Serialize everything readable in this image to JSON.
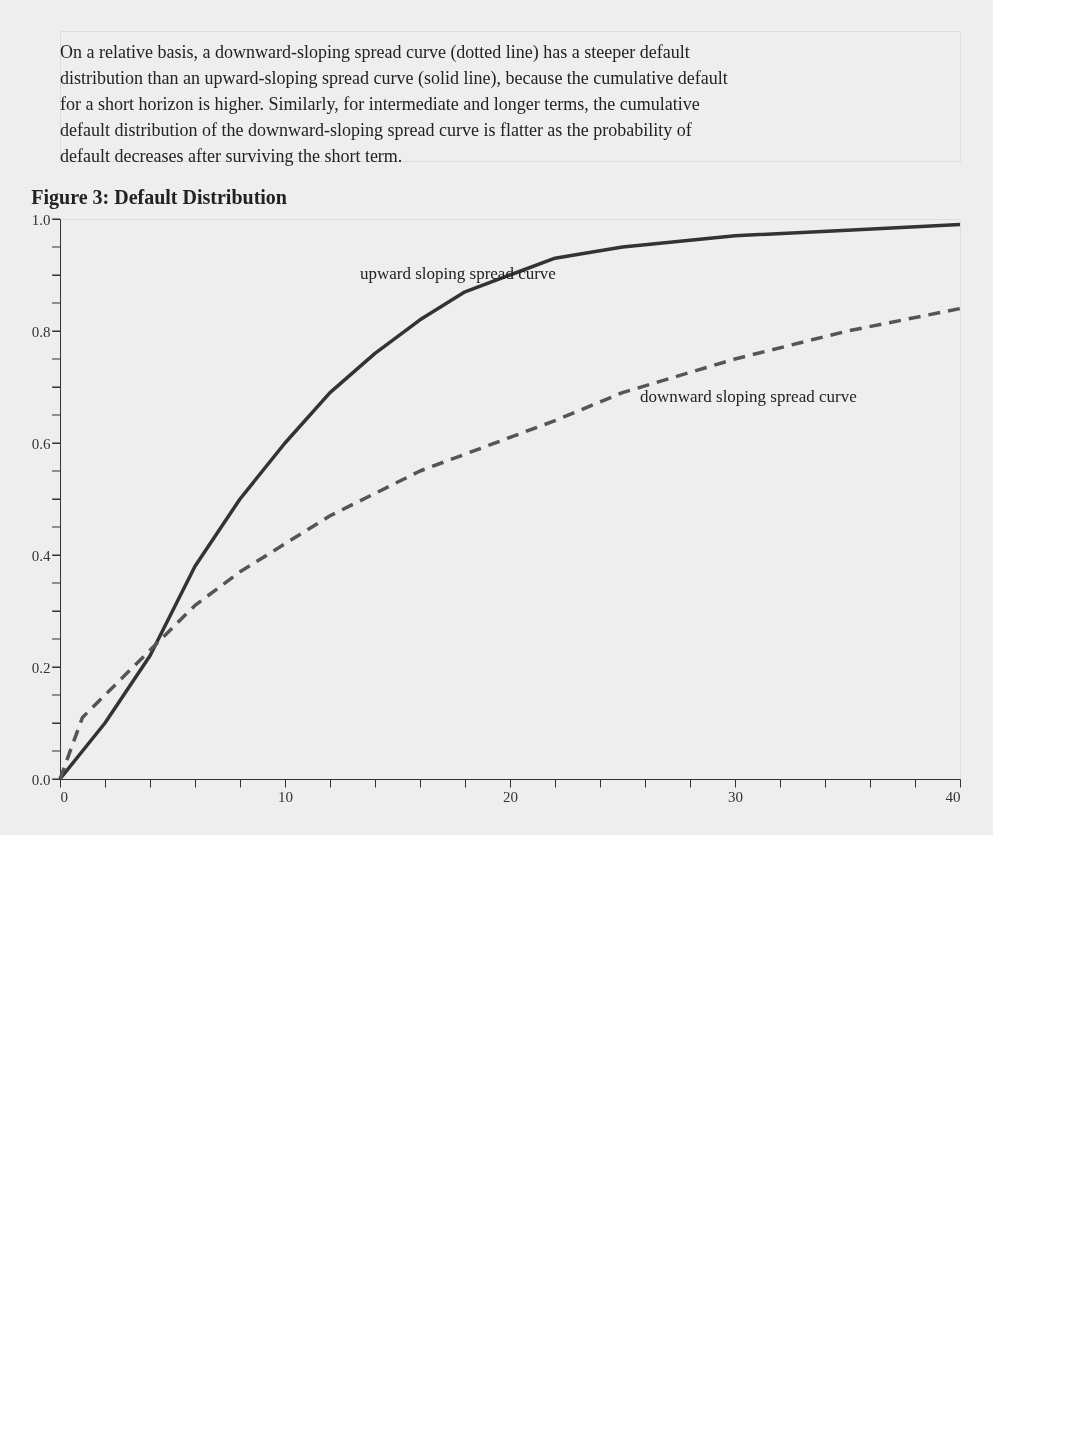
{
  "chart_data": {
    "type": "line",
    "title": "Figure 3: Default Distribution",
    "annotations": [
      "On a relative basis, a downward-sloping spread curve (dotted line) has a steeper default distribution than an upward-sloping spread curve (solid line), because the cumulative default for a short horizon is higher. Similarly, for intermediate and longer terms, the cumulative default distribution of the downward-sloping spread curve is flatter as the probability of default decreases after surviving the short term.",
      "upward sloping spread curve",
      "downward sloping spread curve"
    ],
    "x": [
      0,
      1,
      2,
      4,
      6,
      8,
      10,
      12,
      14,
      16,
      18,
      20,
      22,
      25,
      30,
      35,
      40
    ],
    "series": [
      {
        "color": "#333333",
        "line_style": "solid",
        "values": [
          0,
          0.05,
          0.1,
          0.22,
          0.38,
          0.5,
          0.6,
          0.69,
          0.76,
          0.82,
          0.87,
          0.9,
          0.93,
          0.95,
          0.97,
          0.98,
          0.99
        ]
      },
      {
        "color": "#555555",
        "line_style": "dashed",
        "values": [
          0,
          0.11,
          0.15,
          0.23,
          0.31,
          0.37,
          0.42,
          0.47,
          0.51,
          0.55,
          0.58,
          0.61,
          0.64,
          0.69,
          0.75,
          0.8,
          0.84
        ]
      }
    ],
    "xlim": [
      0,
      40
    ],
    "xticks": [
      0,
      {
        "value": 2,
        "label": null
      },
      {
        "value": 4,
        "label": null
      },
      {
        "value": 6,
        "label": null
      },
      {
        "value": 8,
        "label": null
      },
      10,
      {
        "value": 12,
        "label": null
      },
      {
        "value": 14,
        "label": null
      },
      {
        "value": 16,
        "label": null
      },
      {
        "value": 18,
        "label": null
      },
      20,
      {
        "value": 22,
        "label": null
      },
      {
        "value": 24,
        "label": null
      },
      {
        "value": 26,
        "label": null
      },
      {
        "value": 28,
        "label": null
      },
      30,
      {
        "value": 32,
        "label": null
      },
      {
        "value": 34,
        "label": null
      },
      {
        "value": 36,
        "label": null
      },
      {
        "value": 38,
        "label": null
      },
      40
    ],
    "ylim": [
      0,
      1
    ],
    "yticks": [
      {
        "value": 0,
        "label": "0.0"
      },
      {
        "value": 0.05,
        "label": null
      },
      {
        "value": 0.1,
        "label": null
      },
      {
        "value": 0.15,
        "label": null
      },
      0.2,
      {
        "value": 0.25,
        "label": null
      },
      {
        "value": 0.3,
        "label": null
      },
      {
        "value": 0.35,
        "label": null
      },
      0.4,
      {
        "value": 0.45,
        "label": null
      },
      {
        "value": 0.5,
        "label": null
      },
      {
        "value": 0.55,
        "label": null
      },
      0.6,
      {
        "value": 0.65,
        "label": null
      },
      {
        "value": 0.7,
        "label": null
      },
      {
        "value": 0.75,
        "label": null
      },
      0.8,
      {
        "value": 0.85,
        "label": null
      },
      {
        "value": 0.9,
        "label": null
      },
      {
        "value": 0.95,
        "label": null
      },
      {
        "value": 1,
        "label": "1.0"
      }
    ],
    "grid": false,
    "marker": "none"
  }
}
